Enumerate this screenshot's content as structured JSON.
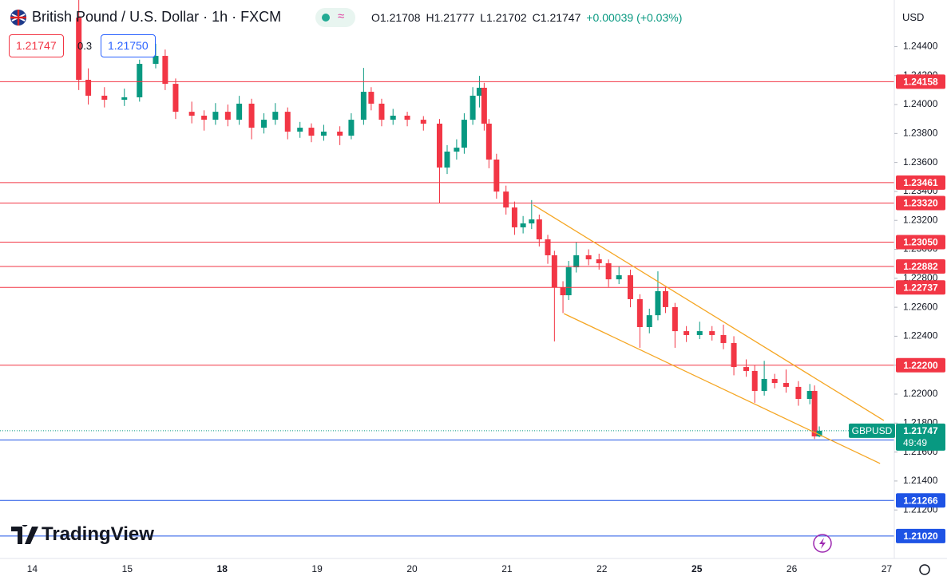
{
  "header": {
    "title": "British Pound / U.S. Dollar · 1h · FXCM",
    "ohlc": [
      {
        "label": "O",
        "value": "1.21708"
      },
      {
        "label": "H",
        "value": "1.21777"
      },
      {
        "label": "L",
        "value": "1.21702"
      },
      {
        "label": "C",
        "value": "1.21747"
      }
    ],
    "change": "+0.00039",
    "change_pct": "(+0.03%)",
    "sell": "1.21747",
    "spread": "0.3",
    "buy": "1.21750",
    "currency": "USD"
  },
  "brand": "TradingView",
  "chart_data": {
    "type": "candlestick",
    "symbol": "GBPUSD",
    "last_price": 1.21747,
    "countdown": "49:49",
    "up_color": "#089981",
    "down_color": "#f23645",
    "x": [
      0.49,
      0.59,
      0.76,
      0.97,
      1.13,
      1.3,
      1.4,
      1.51,
      1.68,
      1.81,
      1.93,
      2.06,
      2.18,
      2.31,
      2.44,
      2.56,
      2.69,
      2.82,
      2.94,
      3.07,
      3.24,
      3.36,
      3.49,
      3.57,
      3.68,
      3.8,
      3.95,
      4.12,
      4.29,
      4.37,
      4.47,
      4.55,
      4.64,
      4.71,
      4.76,
      4.81,
      4.89,
      4.99,
      5.08,
      5.17,
      5.26,
      5.34,
      5.43,
      5.5,
      5.59,
      5.65,
      5.73,
      5.86,
      5.97,
      6.07,
      6.18,
      6.3,
      6.4,
      6.5,
      6.59,
      6.67,
      6.77,
      6.89,
      7.03,
      7.16,
      7.28,
      7.39,
      7.52,
      7.61,
      7.71,
      7.82,
      7.94,
      8.07,
      8.19,
      8.24,
      8.29
    ],
    "open": [
      1.246,
      1.24171,
      1.24061,
      1.24033,
      1.2405,
      1.24281,
      1.24336,
      1.24143,
      1.2395,
      1.23923,
      1.23895,
      1.2395,
      1.23895,
      1.24006,
      1.2384,
      1.23895,
      1.2395,
      1.23813,
      1.2384,
      1.23785,
      1.23813,
      1.23785,
      1.23895,
      1.24088,
      1.24006,
      1.23895,
      1.23923,
      1.23895,
      1.23868,
      1.23565,
      1.23675,
      1.23702,
      1.23895,
      1.24061,
      1.24116,
      1.23868,
      1.2362,
      1.23399,
      1.23289,
      1.23152,
      1.23179,
      1.23207,
      1.23069,
      1.22959,
      1.22738,
      1.22683,
      1.22876,
      1.22959,
      1.22931,
      1.22904,
      1.22793,
      1.22821,
      1.22656,
      1.22463,
      1.22545,
      1.22711,
      1.22601,
      1.22435,
      1.22408,
      1.22435,
      1.22408,
      1.22353,
      1.22187,
      1.2216,
      1.22022,
      1.22105,
      1.22077,
      1.2205,
      1.21967,
      1.22022,
      1.21708
    ],
    "high": [
      1.24722,
      1.2425,
      1.2412,
      1.2411,
      1.2431,
      1.2442,
      1.2438,
      1.2418,
      1.2402,
      1.2396,
      1.2401,
      1.24,
      1.2406,
      1.2404,
      1.2394,
      1.2401,
      1.2398,
      1.2388,
      1.2387,
      1.2386,
      1.2385,
      1.2394,
      1.24253,
      1.2412,
      1.2404,
      1.2397,
      1.2395,
      1.2392,
      1.239,
      1.2372,
      1.2376,
      1.2394,
      1.2412,
      1.24198,
      1.2415,
      1.239,
      1.2366,
      1.2344,
      1.2333,
      1.2323,
      1.2334,
      1.2324,
      1.231,
      1.2299,
      1.2278,
      1.2292,
      1.2305,
      1.23,
      1.2297,
      1.2293,
      1.2288,
      1.2286,
      1.2269,
      1.2259,
      1.22848,
      1.2274,
      1.2263,
      1.2247,
      1.225,
      1.2247,
      1.2248,
      1.224,
      1.2224,
      1.222,
      1.2223,
      1.2214,
      1.2217,
      1.2209,
      1.2207,
      1.2206,
      1.21777
    ],
    "low": [
      1.241,
      1.24,
      1.2398,
      1.2399,
      1.2402,
      1.2425,
      1.241,
      1.239,
      1.2387,
      1.2382,
      1.2386,
      1.2385,
      1.2386,
      1.2376,
      1.238,
      1.2386,
      1.2376,
      1.2377,
      1.2374,
      1.2375,
      1.2372,
      1.2376,
      1.2386,
      1.2396,
      1.2385,
      1.2386,
      1.2385,
      1.2382,
      1.23317,
      1.2352,
      1.2362,
      1.2366,
      1.2386,
      1.2398,
      1.2382,
      1.2356,
      1.2335,
      1.2324,
      1.231,
      1.2311,
      1.2314,
      1.2302,
      1.229,
      1.22364,
      1.2256,
      1.2265,
      1.2284,
      1.2289,
      1.2286,
      1.2274,
      1.2276,
      1.226,
      1.2232,
      1.2242,
      1.2251,
      1.2256,
      1.2232,
      1.2236,
      1.2238,
      1.2237,
      1.2231,
      1.2213,
      1.2212,
      1.2194,
      1.2199,
      1.2204,
      1.2201,
      1.2192,
      1.2193,
      1.2169,
      1.21702
    ],
    "close": [
      1.24171,
      1.24061,
      1.24033,
      1.2405,
      1.24281,
      1.24336,
      1.24143,
      1.2395,
      1.23923,
      1.23895,
      1.2395,
      1.23895,
      1.24006,
      1.2384,
      1.23895,
      1.2395,
      1.23813,
      1.2384,
      1.23785,
      1.23813,
      1.23785,
      1.23895,
      1.24088,
      1.24006,
      1.23895,
      1.23923,
      1.23895,
      1.23868,
      1.23565,
      1.23675,
      1.23702,
      1.23895,
      1.24061,
      1.24116,
      1.23868,
      1.2362,
      1.23399,
      1.23289,
      1.23152,
      1.23179,
      1.23207,
      1.23069,
      1.22959,
      1.22738,
      1.22683,
      1.22876,
      1.22959,
      1.22931,
      1.22904,
      1.22793,
      1.22821,
      1.22656,
      1.22463,
      1.22545,
      1.22711,
      1.22601,
      1.22435,
      1.22408,
      1.22435,
      1.22408,
      1.22353,
      1.22187,
      1.2216,
      1.22022,
      1.22105,
      1.22077,
      1.2205,
      1.21967,
      1.22022,
      1.21708,
      1.21747
    ],
    "xlim": [
      -0.34,
      9.08
    ],
    "xticks": [
      {
        "value": 0,
        "label": "14"
      },
      {
        "value": 1,
        "label": "15"
      },
      {
        "value": 2,
        "label": "18",
        "bold": true
      },
      {
        "value": 3,
        "label": "19"
      },
      {
        "value": 4,
        "label": "20"
      },
      {
        "value": 5,
        "label": "21"
      },
      {
        "value": 6,
        "label": "22"
      },
      {
        "value": 7,
        "label": "25",
        "bold": true
      },
      {
        "value": 8,
        "label": "26"
      },
      {
        "value": 9,
        "label": "27"
      }
    ],
    "ylim": [
      1.20865,
      1.24722
    ],
    "yticks": [
      {
        "value": 1.212,
        "label": "1.21200"
      },
      {
        "value": 1.214,
        "label": "1.21400"
      },
      {
        "value": 1.216,
        "label": "1.21600"
      },
      {
        "value": 1.218,
        "label": "1.21800"
      },
      {
        "value": 1.22,
        "label": "1.22000"
      },
      {
        "value": 1.222,
        "label": "1.22200"
      },
      {
        "value": 1.224,
        "label": "1.22400"
      },
      {
        "value": 1.226,
        "label": "1.22600"
      },
      {
        "value": 1.228,
        "label": "1.22800"
      },
      {
        "value": 1.23,
        "label": "1.23000"
      },
      {
        "value": 1.232,
        "label": "1.23200"
      },
      {
        "value": 1.234,
        "label": "1.23400"
      },
      {
        "value": 1.236,
        "label": "1.23600"
      },
      {
        "value": 1.238,
        "label": "1.23800"
      },
      {
        "value": 1.24,
        "label": "1.24000"
      },
      {
        "value": 1.242,
        "label": "1.24200"
      },
      {
        "value": 1.244,
        "label": "1.24400"
      }
    ],
    "grid": false,
    "levels": [
      {
        "value": 1.24158,
        "color": "#f23645"
      },
      {
        "value": 1.23461,
        "color": "#f23645"
      },
      {
        "value": 1.2332,
        "label": "1.23320",
        "color": "#f23645"
      },
      {
        "value": 1.2305,
        "label": "1.23050",
        "color": "#f23645"
      },
      {
        "value": 1.22882,
        "color": "#f23645"
      },
      {
        "value": 1.22737,
        "color": "#f23645"
      },
      {
        "value": 1.222,
        "label": "1.22200",
        "color": "#f23645"
      },
      {
        "value": 1.21683,
        "color": "#1e53e5"
      },
      {
        "value": 1.21266,
        "color": "#1e53e5"
      },
      {
        "value": 1.2102,
        "label": "1.21020",
        "color": "#1e53e5"
      }
    ],
    "trendlines": [
      {
        "x": [
          5.28,
          8.97
        ],
        "y": [
          1.23306,
          1.21818
        ],
        "color": "#f5a623"
      },
      {
        "x": [
          5.6,
          8.93
        ],
        "y": [
          1.22556,
          1.21521
        ],
        "color": "#f5a623"
      }
    ]
  }
}
